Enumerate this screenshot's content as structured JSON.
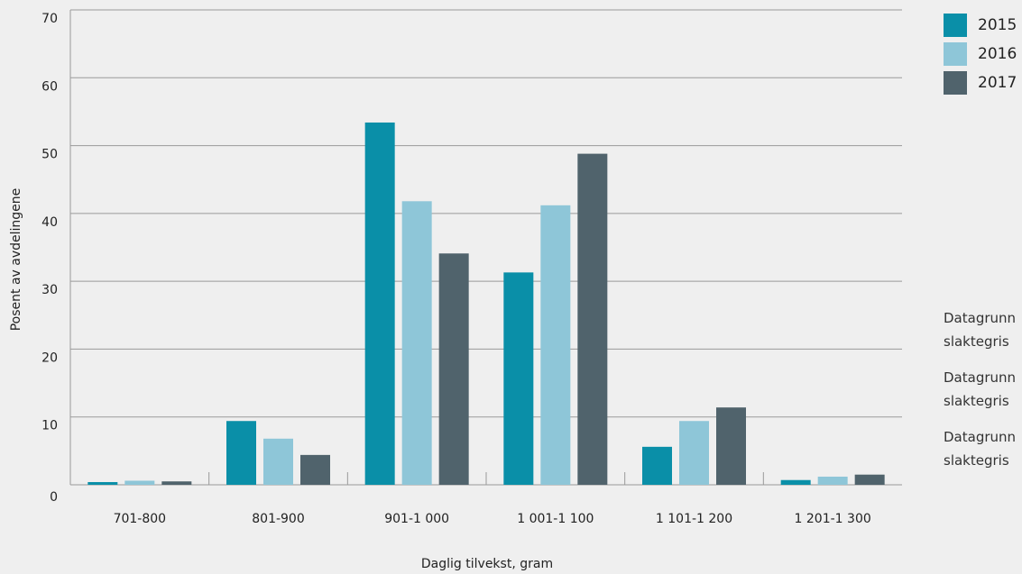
{
  "chart_data": {
    "type": "bar",
    "xlabel": "Daglig tilvekst, gram",
    "ylabel": "Posent av avdelingene",
    "ylim": [
      0,
      70
    ],
    "yticks": [
      0,
      10,
      20,
      30,
      40,
      50,
      60,
      70
    ],
    "grid": true,
    "legend_position": "top-right",
    "categories": [
      "701-800",
      "801-900",
      "901-1 000",
      "1 001-1 100",
      "1 101-1 200",
      "1 201-1 300"
    ],
    "series": [
      {
        "name": "2015",
        "color": "#0a8fa8",
        "values": [
          0.4,
          9.4,
          53.4,
          31.3,
          5.6,
          0.7
        ]
      },
      {
        "name": "2016",
        "color": "#8ec6d8",
        "values": [
          0.6,
          6.8,
          41.8,
          41.2,
          9.4,
          1.2
        ]
      },
      {
        "name": "2017",
        "color": "#50636c",
        "values": [
          0.5,
          4.4,
          34.1,
          48.8,
          11.4,
          1.5
        ]
      }
    ]
  },
  "notes": [
    [
      "Datagrunn",
      "slaktegris"
    ],
    [
      "Datagrunn",
      "slaktegris"
    ],
    [
      "Datagrunn",
      "slaktegris"
    ]
  ]
}
